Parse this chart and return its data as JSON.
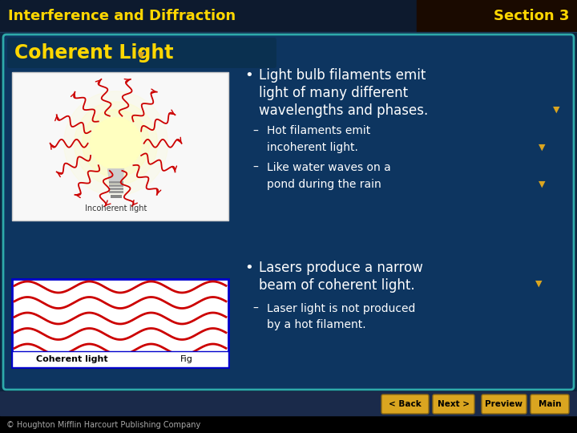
{
  "title_left": "Interference and Diffraction",
  "title_right": "Section 3",
  "title_color": "#FFD700",
  "slide_bg": "#0a2540",
  "content_bg": "#0d3b5e",
  "content_border": "#2eaaaa",
  "section_title": "Coherent Light",
  "section_title_color": "#FFD700",
  "bullet1_line1": "Light bulb filaments emit",
  "bullet1_line2": "light of many different",
  "bullet1_line3": "wavelengths and phases.",
  "sub1a_line1": "Hot filaments emit",
  "sub1a_line2": "incoherent light.",
  "sub1b_line1": "Like water waves on a",
  "sub1b_line2": "pond during the rain",
  "bullet2_line1": "Lasers produce a narrow",
  "bullet2_line2": "beam of coherent light.",
  "sub2a_line1": "Laser light is not produced",
  "sub2a_line2": "by a hot filament.",
  "text_color": "#FFFFFF",
  "footer_text": "© Houghton Mifflin Harcourt Publishing Company",
  "arrow_color": "#DAA520",
  "nav_buttons": [
    "< Back",
    "Next >",
    "Preview",
    "Main"
  ],
  "nav_button_color": "#DAA520"
}
